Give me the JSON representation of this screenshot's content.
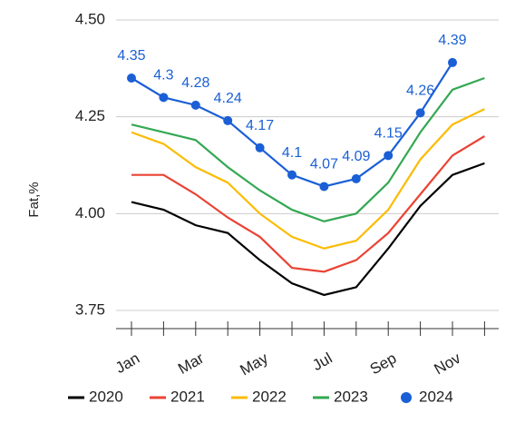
{
  "chart_data": {
    "type": "line",
    "y_label": "Fat,%",
    "categories": [
      "Jan",
      null,
      "Mar",
      null,
      "May",
      null,
      "Jul",
      null,
      "Sep",
      null,
      "Nov",
      null
    ],
    "ylim": [
      3.75,
      4.5
    ],
    "yticks": [
      3.75,
      {
        "value": 4,
        "label": "4.00"
      },
      4.25,
      {
        "value": 4.5,
        "label": "4.50"
      }
    ],
    "grid": true,
    "legend": "bottom",
    "series": [
      {
        "name": "2020",
        "color": "#000000",
        "values": [
          4.03,
          4.01,
          3.97,
          3.95,
          3.88,
          3.82,
          3.79,
          3.81,
          3.91,
          4.02,
          4.1,
          4.13
        ]
      },
      {
        "name": "2021",
        "color": "#ea4335",
        "values": [
          4.1,
          4.1,
          4.05,
          3.99,
          3.94,
          3.86,
          3.85,
          3.88,
          3.95,
          4.05,
          4.15,
          4.2
        ]
      },
      {
        "name": "2022",
        "color": "#fbbc04",
        "values": [
          4.21,
          4.18,
          4.12,
          4.08,
          4.0,
          3.94,
          3.91,
          3.93,
          4.01,
          4.14,
          4.23,
          4.27
        ]
      },
      {
        "name": "2023",
        "color": "#34a853",
        "values": [
          4.23,
          4.21,
          4.19,
          4.12,
          4.06,
          4.01,
          3.98,
          4.0,
          4.08,
          4.21,
          4.32,
          4.35
        ]
      },
      {
        "name": "2024",
        "color": "#1a5fd6",
        "markers": true,
        "data_labels": true,
        "values": [
          4.35,
          4.3,
          4.28,
          4.24,
          4.17,
          4.1,
          4.07,
          4.09,
          4.15,
          4.26,
          4.39,
          null
        ]
      }
    ]
  }
}
